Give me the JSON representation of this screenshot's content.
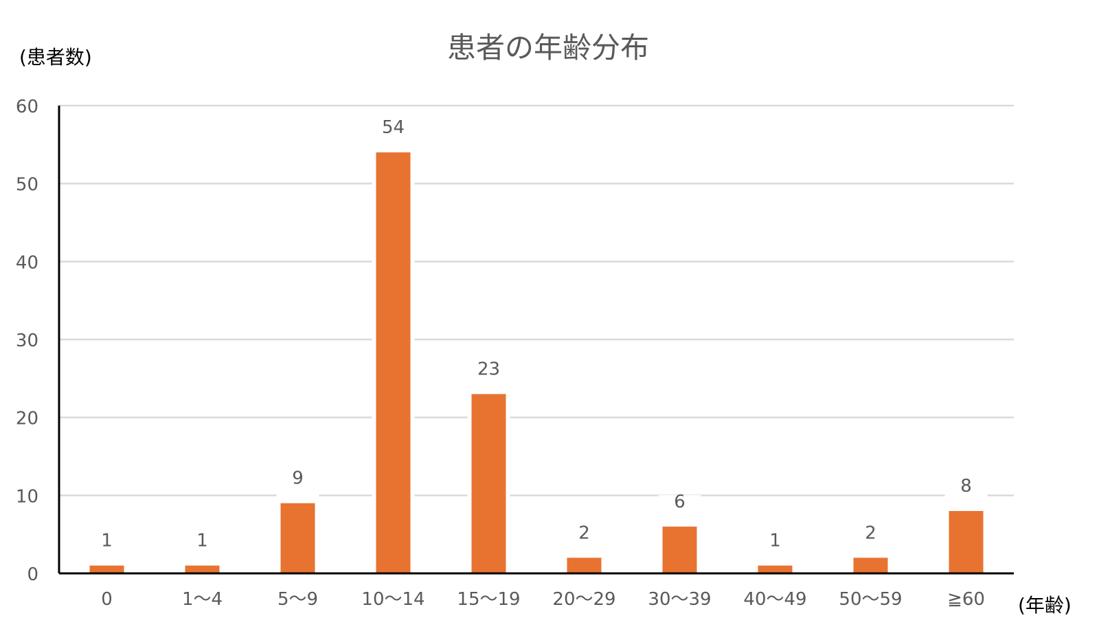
{
  "chart_data": {
    "type": "bar",
    "title": "患者の年齢分布",
    "ylabel": "(患者数)",
    "xlabel": "(年齢)",
    "categories": [
      "0",
      "1〜4",
      "5〜9",
      "10〜14",
      "15〜19",
      "20〜29",
      "30〜39",
      "40〜49",
      "50〜59",
      "≧60"
    ],
    "values": [
      1,
      1,
      9,
      54,
      23,
      2,
      6,
      1,
      2,
      8
    ],
    "ylim": [
      0,
      60
    ],
    "yticks": [
      "0",
      "10",
      "20",
      "30",
      "40",
      "50",
      "60"
    ],
    "grid": true,
    "data_labels": true,
    "bar_color": "#E87331",
    "grid_color": "#D9D9D9",
    "axis_color": "#000000",
    "text_color": "#595959"
  }
}
